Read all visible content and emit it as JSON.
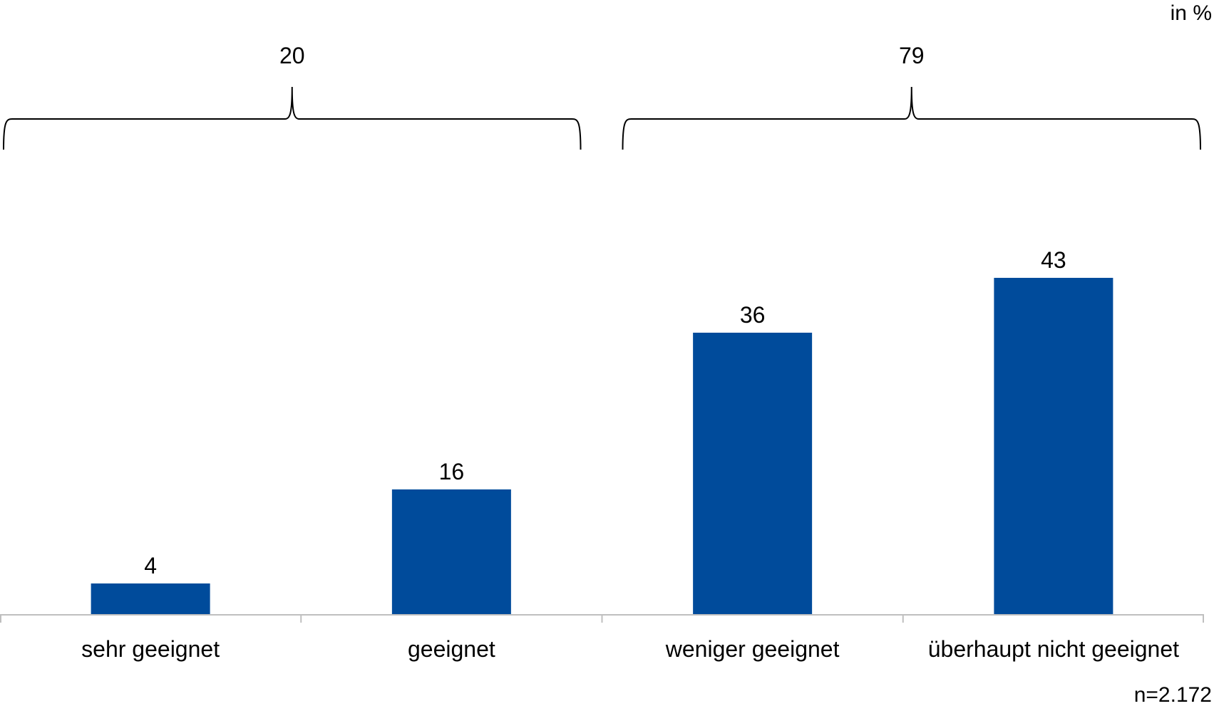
{
  "chart_data": {
    "type": "bar",
    "title": "",
    "unit_label": "in %",
    "sample_label": "n=2.172",
    "xlabel": "",
    "ylabel": "",
    "ylim": [
      0,
      50
    ],
    "grid": false,
    "legend": "none",
    "categories": [
      "sehr geeignet",
      "geeignet",
      "weniger geeignet",
      "überhaupt nicht geeignet"
    ],
    "series": [
      {
        "values": [
          4,
          16,
          36,
          43
        ]
      }
    ],
    "groups": [
      {
        "categories": [
          0,
          1
        ],
        "total": "20"
      },
      {
        "categories": [
          2,
          3
        ],
        "total": "79"
      }
    ],
    "bar_color": "#004b9b",
    "axis_color": "#bfbfbf",
    "bracket_color": "#000000"
  }
}
